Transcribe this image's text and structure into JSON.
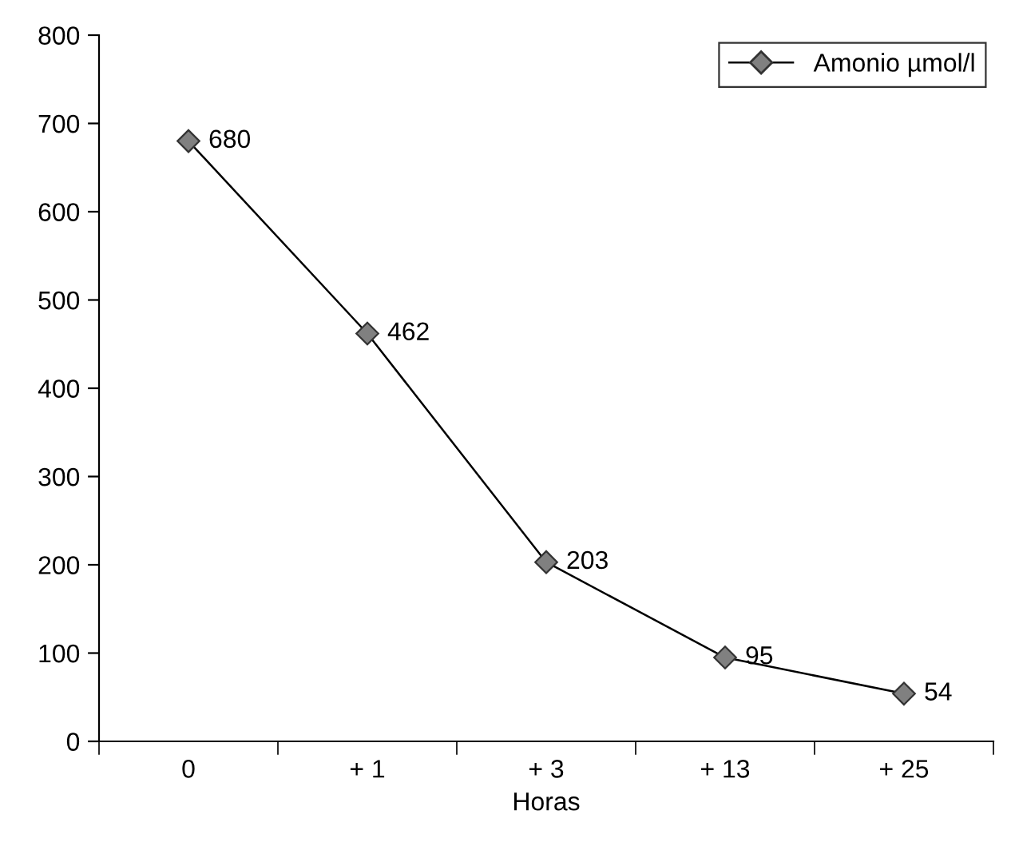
{
  "chart_data": {
    "type": "line",
    "xlabel": "Horas",
    "categories": [
      "0",
      "+ 1",
      "+ 3",
      "+ 13",
      "+ 25"
    ],
    "series": [
      {
        "name": "Amonio µmol/l",
        "color": "#808080",
        "values": [
          680,
          462,
          203,
          95,
          54
        ]
      }
    ],
    "ylim": [
      0,
      800
    ],
    "yticks": [
      0,
      100,
      200,
      300,
      400,
      500,
      600,
      700,
      800
    ],
    "marker": "diamond",
    "line_style": "solid",
    "legend": "top right",
    "grid": false,
    "data_labels": true
  }
}
